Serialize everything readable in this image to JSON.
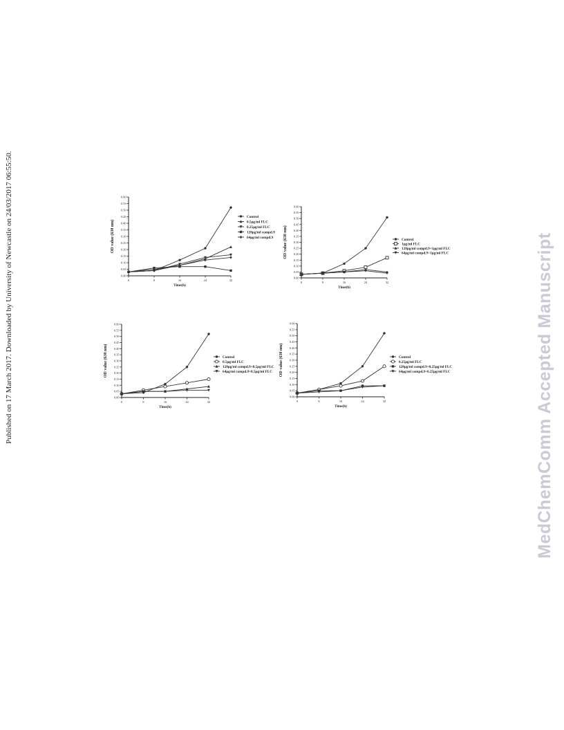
{
  "side_note": "Published on 17 March 2017. Downloaded by University of Newcastle on 24/03/2017 06:55:50.",
  "watermark": "MedChemComm Accepted Manuscript",
  "colors": {
    "line": "#333333",
    "watermark": "#c9c9d8"
  },
  "chart_data": [
    {
      "type": "line",
      "xlabel": "Time(h)",
      "ylabel": "OD value (630 nm)",
      "x": [
        0,
        8,
        16,
        24,
        32
      ],
      "x_ticks": [
        "0",
        "8",
        "16",
        "24",
        "32"
      ],
      "ylim": [
        0,
        0.6
      ],
      "y_ticks": [
        "0.00",
        "0.05",
        "0.10",
        "0.15",
        "0.20",
        "0.25",
        "0.30",
        "0.35",
        "0.40",
        "0.45",
        "0.50",
        "0.55",
        "0.60"
      ],
      "legend_position": "right",
      "series": [
        {
          "name": "Control",
          "marker": "dot",
          "values": [
            0.03,
            0.04,
            0.12,
            0.21,
            0.52
          ]
        },
        {
          "name": "0.5μg/ml FLC",
          "marker": "tri-up",
          "values": [
            0.03,
            0.05,
            0.08,
            0.13,
            0.22
          ]
        },
        {
          "name": "0.25μg/ml FLC",
          "marker": "tri-down",
          "values": [
            0.03,
            0.04,
            0.09,
            0.14,
            0.16
          ]
        },
        {
          "name": "128μg/ml compd.9",
          "marker": "square",
          "values": [
            0.03,
            0.06,
            0.07,
            0.07,
            0.04
          ]
        },
        {
          "name": "64μg/ml compd.9",
          "marker": "diamond",
          "values": [
            0.03,
            0.04,
            0.08,
            0.12,
            0.14
          ]
        }
      ]
    },
    {
      "type": "line",
      "xlabel": "Time(h)",
      "ylabel": "OD value (630 nm)",
      "x": [
        0,
        8,
        16,
        24,
        32
      ],
      "x_ticks": [
        "0",
        "8",
        "16",
        "24",
        "32"
      ],
      "ylim": [
        0,
        0.6
      ],
      "y_ticks": [
        "0.00",
        "0.05",
        "0.10",
        "0.15",
        "0.20",
        "0.25",
        "0.30",
        "0.35",
        "0.40",
        "0.45",
        "0.50",
        "0.55",
        "0.60"
      ],
      "legend_position": "right",
      "series": [
        {
          "name": "Control",
          "marker": "dot",
          "values": [
            0.03,
            0.04,
            0.12,
            0.25,
            0.51
          ]
        },
        {
          "name": "1μg/ml FLC",
          "marker": "square-open",
          "values": [
            0.03,
            0.04,
            0.06,
            0.09,
            0.17
          ]
        },
        {
          "name": "128μg/ml compd.9+1μg/ml FLC",
          "marker": "tri-up",
          "values": [
            0.03,
            0.04,
            0.05,
            0.07,
            0.05
          ]
        },
        {
          "name": "64μg/ml compd.9+1μg/ml FLC",
          "marker": "tri-down",
          "values": [
            0.03,
            0.04,
            0.05,
            0.06,
            0.04
          ]
        }
      ]
    },
    {
      "type": "line",
      "xlabel": "Time(h)",
      "ylabel": "OD value (630 nm)",
      "x": [
        0,
        8,
        16,
        24,
        32
      ],
      "x_ticks": [
        "0",
        "8",
        "16",
        "24",
        "32"
      ],
      "ylim": [
        0,
        0.6
      ],
      "y_ticks": [
        "0.00",
        "0.05",
        "0.10",
        "0.15",
        "0.20",
        "0.25",
        "0.30",
        "0.35",
        "0.40",
        "0.45",
        "0.50",
        "0.55",
        "0.60"
      ],
      "legend_position": "right",
      "series": [
        {
          "name": "Control",
          "marker": "dot",
          "values": [
            0.03,
            0.04,
            0.11,
            0.25,
            0.52
          ]
        },
        {
          "name": "0.5μg/ml FLC",
          "marker": "dot-open",
          "values": [
            0.03,
            0.06,
            0.09,
            0.12,
            0.15
          ]
        },
        {
          "name": "128μg/ml compd.9+0.5μg/ml FLC",
          "marker": "tri-up",
          "values": [
            0.03,
            0.05,
            0.05,
            0.07,
            0.09
          ]
        },
        {
          "name": "64μg/ml compd.9+0.5μg/ml FLC",
          "marker": "tri-down",
          "values": [
            0.03,
            0.05,
            0.05,
            0.06,
            0.06
          ]
        }
      ]
    },
    {
      "type": "line",
      "xlabel": "Time(h)",
      "ylabel": "OD value (630 nm)",
      "x": [
        0,
        8,
        16,
        24,
        32
      ],
      "x_ticks": [
        "0",
        "8",
        "16",
        "24",
        "32"
      ],
      "ylim": [
        0,
        0.6
      ],
      "y_ticks": [
        "0.00",
        "0.05",
        "0.10",
        "0.15",
        "0.20",
        "0.25",
        "0.30",
        "0.35",
        "0.40",
        "0.45",
        "0.50",
        "0.55",
        "0.60"
      ],
      "legend_position": "right",
      "series": [
        {
          "name": "Control",
          "marker": "dot",
          "values": [
            0.03,
            0.06,
            0.11,
            0.25,
            0.52
          ]
        },
        {
          "name": "0.25μg/ml FLC",
          "marker": "dot-open",
          "values": [
            0.03,
            0.06,
            0.09,
            0.13,
            0.25
          ]
        },
        {
          "name": "128μg/ml compd.9+0.25μg/ml FLC",
          "marker": "square",
          "values": [
            0.03,
            0.05,
            0.05,
            0.09,
            0.09
          ]
        },
        {
          "name": "64μg/ml compd.9+0.25μg/ml FLC",
          "marker": "tri-down",
          "values": [
            0.03,
            0.04,
            0.05,
            0.08,
            0.09
          ]
        }
      ]
    }
  ]
}
